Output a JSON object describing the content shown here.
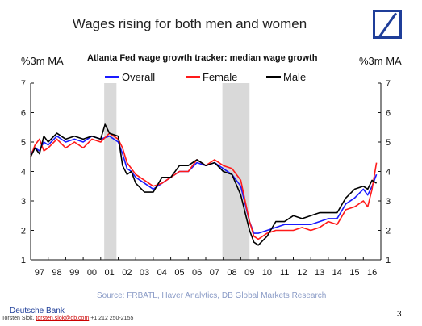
{
  "slide": {
    "title": "Wages rising for both men and women",
    "logo": "deutsche-bank-slash-logo",
    "source": "Source: FRBATL, Haver Analytics, DB Global Markets Research",
    "footer_bank": "Deutsche Bank",
    "footer_author": "Torsten Slok, ",
    "footer_email": "torsten.slok@db.com",
    "footer_phone": " +1 212 250-2155",
    "page_number": "3"
  },
  "chart_data": {
    "type": "line",
    "title": "Atlanta Fed wage growth tracker: median wage growth",
    "ylabel_left": "%3m MA",
    "ylabel_right": "%3m MA",
    "ylim": [
      1,
      7
    ],
    "yticks": [
      "1",
      "2",
      "3",
      "4",
      "5",
      "6",
      "7"
    ],
    "xlim": [
      1997,
      2017
    ],
    "xticks": [
      "97",
      "98",
      "99",
      "00",
      "01",
      "02",
      "03",
      "04",
      "05",
      "06",
      "07",
      "08",
      "09",
      "10",
      "11",
      "12",
      "13",
      "14",
      "15",
      "16"
    ],
    "grid": false,
    "legend_position": "top",
    "recession_shading": [
      [
        2001.2,
        2001.9
      ],
      [
        2007.95,
        2009.5
      ]
    ],
    "colors": {
      "overall": "#1a1aff",
      "female": "#ff1a1a",
      "male": "#000000",
      "recession": "#d9d9d9"
    },
    "series": [
      {
        "name": "Overall",
        "x": [
          1997,
          1997.25,
          1997.5,
          1997.75,
          1998,
          1998.5,
          1999,
          1999.5,
          2000,
          2000.5,
          2001,
          2001.5,
          2002,
          2002.25,
          2002.5,
          2002.75,
          2003,
          2003.5,
          2004,
          2004.5,
          2005,
          2005.5,
          2006,
          2006.5,
          2007,
          2007.5,
          2008,
          2008.5,
          2009,
          2009.25,
          2009.5,
          2009.75,
          2010,
          2010.5,
          2011,
          2011.5,
          2012,
          2012.5,
          2013,
          2013.5,
          2014,
          2014.5,
          2015,
          2015.5,
          2016,
          2016.25,
          2016.5,
          2016.75
        ],
        "values": [
          4.6,
          4.8,
          4.7,
          5.0,
          4.9,
          5.2,
          5.0,
          5.1,
          5.0,
          5.2,
          5.1,
          5.2,
          5.0,
          4.6,
          4.1,
          4.0,
          3.8,
          3.6,
          3.4,
          3.6,
          3.8,
          4.0,
          4.0,
          4.3,
          4.2,
          4.3,
          4.1,
          3.9,
          3.5,
          2.9,
          2.3,
          1.9,
          1.9,
          2.0,
          2.1,
          2.2,
          2.2,
          2.2,
          2.2,
          2.3,
          2.4,
          2.4,
          2.9,
          3.1,
          3.4,
          3.2,
          3.5,
          3.9
        ]
      },
      {
        "name": "Female",
        "x": [
          1997,
          1997.25,
          1997.5,
          1997.75,
          1998,
          1998.5,
          1999,
          1999.5,
          2000,
          2000.5,
          2001,
          2001.5,
          2002,
          2002.25,
          2002.5,
          2002.75,
          2003,
          2003.5,
          2004,
          2004.5,
          2005,
          2005.5,
          2006,
          2006.5,
          2007,
          2007.5,
          2008,
          2008.5,
          2009,
          2009.25,
          2009.5,
          2009.75,
          2010,
          2010.5,
          2011,
          2011.5,
          2012,
          2012.5,
          2013,
          2013.5,
          2014,
          2014.5,
          2015,
          2015.5,
          2016,
          2016.25,
          2016.5,
          2016.75
        ],
        "values": [
          4.5,
          4.9,
          5.1,
          4.7,
          4.8,
          5.1,
          4.8,
          5.0,
          4.8,
          5.1,
          5.0,
          5.3,
          5.1,
          4.8,
          4.3,
          4.1,
          3.9,
          3.7,
          3.5,
          3.6,
          3.8,
          4.0,
          4.0,
          4.4,
          4.2,
          4.4,
          4.2,
          4.1,
          3.7,
          3.0,
          2.3,
          1.8,
          1.7,
          1.9,
          2.0,
          2.0,
          2.0,
          2.1,
          2.0,
          2.1,
          2.3,
          2.2,
          2.7,
          2.8,
          3.0,
          2.8,
          3.4,
          4.3
        ]
      },
      {
        "name": "Male",
        "x": [
          1997,
          1997.25,
          1997.5,
          1997.75,
          1998,
          1998.5,
          1999,
          1999.5,
          2000,
          2000.5,
          2001,
          2001.25,
          2001.5,
          2002,
          2002.25,
          2002.5,
          2002.75,
          2003,
          2003.5,
          2004,
          2004.5,
          2005,
          2005.5,
          2006,
          2006.5,
          2007,
          2007.5,
          2008,
          2008.5,
          2009,
          2009.25,
          2009.5,
          2009.75,
          2010,
          2010.5,
          2011,
          2011.5,
          2012,
          2012.5,
          2013,
          2013.5,
          2014,
          2014.5,
          2015,
          2015.5,
          2016,
          2016.25,
          2016.5,
          2016.75
        ],
        "values": [
          4.5,
          4.8,
          4.6,
          5.2,
          5.0,
          5.3,
          5.1,
          5.2,
          5.1,
          5.2,
          5.1,
          5.6,
          5.3,
          5.2,
          4.2,
          3.9,
          4.0,
          3.6,
          3.3,
          3.3,
          3.8,
          3.8,
          4.2,
          4.2,
          4.4,
          4.2,
          4.3,
          4.0,
          3.9,
          3.2,
          2.6,
          2.0,
          1.6,
          1.5,
          1.8,
          2.3,
          2.3,
          2.5,
          2.4,
          2.5,
          2.6,
          2.6,
          2.6,
          3.1,
          3.4,
          3.5,
          3.4,
          3.7,
          3.6
        ]
      }
    ]
  }
}
